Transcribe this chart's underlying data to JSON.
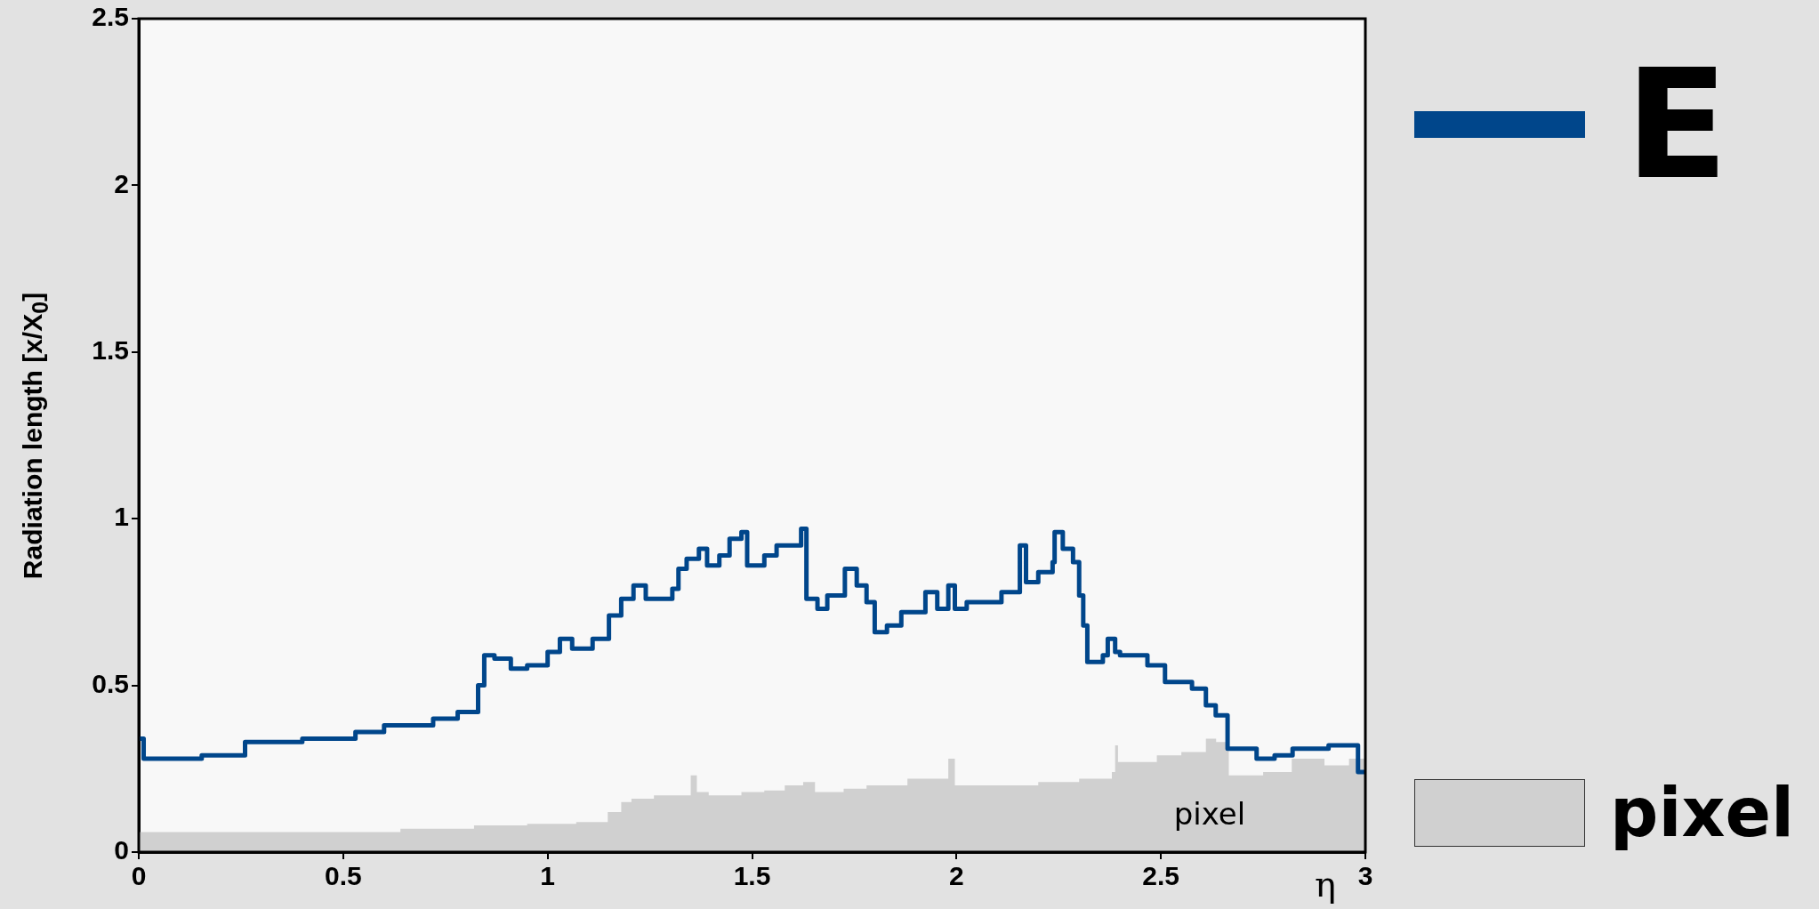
{
  "chart_data": {
    "type": "step",
    "ylabel": "Radiation length [x/X$_{0}$]",
    "xlabel": "η",
    "xlim": [
      0,
      3
    ],
    "xticks": [
      0,
      0.5,
      1,
      1.5,
      2,
      2.5,
      3
    ],
    "ylim": [
      0,
      2.5
    ],
    "yticks": [
      0,
      0.5,
      1,
      1.5,
      2,
      2.5
    ],
    "grid": false,
    "legend": "right",
    "annotations": [
      "pixel"
    ],
    "series": [
      {
        "name": "E",
        "color": "#00468b",
        "x": [
          0,
          0.012,
          0.154,
          0.26,
          0.4,
          0.53,
          0.6,
          0.72,
          0.78,
          0.83,
          0.845,
          0.87,
          0.91,
          0.95,
          1.0,
          1.03,
          1.06,
          1.11,
          1.15,
          1.18,
          1.21,
          1.24,
          1.305,
          1.32,
          1.34,
          1.37,
          1.39,
          1.42,
          1.445,
          1.474,
          1.488,
          1.53,
          1.56,
          1.62,
          1.633,
          1.66,
          1.684,
          1.727,
          1.756,
          1.78,
          1.8,
          1.83,
          1.865,
          1.894,
          1.924,
          1.953,
          1.98,
          1.996,
          2.025,
          2.11,
          2.155,
          2.17,
          2.2,
          2.235,
          2.24,
          2.26,
          2.285,
          2.3,
          2.31,
          2.32,
          2.358,
          2.37,
          2.388,
          2.4,
          2.467,
          2.51,
          2.576,
          2.61,
          2.634,
          2.663,
          2.69,
          2.734,
          2.778,
          2.822,
          2.91,
          2.982,
          3.0
        ],
        "values": [
          0.34,
          0.28,
          0.29,
          0.33,
          0.34,
          0.36,
          0.38,
          0.4,
          0.42,
          0.5,
          0.59,
          0.58,
          0.55,
          0.56,
          0.6,
          0.64,
          0.61,
          0.64,
          0.71,
          0.76,
          0.8,
          0.76,
          0.79,
          0.85,
          0.88,
          0.91,
          0.86,
          0.89,
          0.94,
          0.96,
          0.86,
          0.89,
          0.92,
          0.97,
          0.76,
          0.73,
          0.77,
          0.85,
          0.8,
          0.75,
          0.66,
          0.68,
          0.72,
          0.72,
          0.78,
          0.73,
          0.8,
          0.73,
          0.75,
          0.78,
          0.92,
          0.81,
          0.84,
          0.87,
          0.96,
          0.91,
          0.87,
          0.77,
          0.68,
          0.57,
          0.59,
          0.64,
          0.6,
          0.59,
          0.56,
          0.51,
          0.49,
          0.44,
          0.41,
          0.31,
          0.31,
          0.28,
          0.29,
          0.31,
          0.32,
          0.24,
          0.24
        ]
      },
      {
        "name": "pixel",
        "type": "area",
        "color": "#d0d0d0",
        "x": [
          0,
          0.64,
          0.82,
          0.95,
          1.07,
          1.147,
          1.18,
          1.205,
          1.26,
          1.35,
          1.365,
          1.394,
          1.474,
          1.53,
          1.58,
          1.625,
          1.654,
          1.724,
          1.78,
          1.88,
          1.98,
          1.996,
          2.1,
          2.2,
          2.3,
          2.38,
          2.388,
          2.395,
          2.49,
          2.55,
          2.61,
          2.635,
          2.666,
          2.75,
          2.82,
          2.9,
          2.96,
          3.0
        ],
        "values": [
          0.06,
          0.07,
          0.08,
          0.085,
          0.09,
          0.12,
          0.15,
          0.16,
          0.17,
          0.23,
          0.18,
          0.17,
          0.18,
          0.185,
          0.2,
          0.21,
          0.18,
          0.19,
          0.2,
          0.22,
          0.28,
          0.2,
          0.2,
          0.21,
          0.22,
          0.24,
          0.32,
          0.27,
          0.29,
          0.3,
          0.34,
          0.33,
          0.23,
          0.24,
          0.28,
          0.26,
          0.28,
          0.28
        ]
      }
    ]
  }
}
